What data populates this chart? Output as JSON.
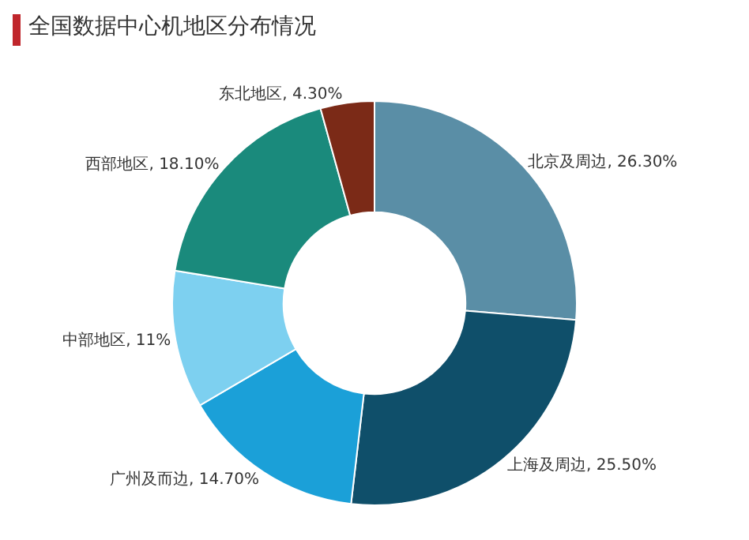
{
  "chart_data": {
    "type": "donut",
    "title": "全国数据中心机地区分布情况",
    "categories": [
      "北京及周边",
      "上海及周边",
      "广州及而边",
      "中部地区",
      "西部地区",
      "东北地区"
    ],
    "values": [
      26.3,
      25.5,
      14.7,
      11,
      18.1,
      4.3
    ],
    "value_labels": [
      "26.30%",
      "25.50%",
      "14.70%",
      "11%",
      "18.10%",
      "4.30%"
    ],
    "colors": [
      "#5a8ea6",
      "#0f4f6a",
      "#1ba0d8",
      "#7dd0f0",
      "#1a8a7c",
      "#7b2a17"
    ],
    "legend": false
  }
}
